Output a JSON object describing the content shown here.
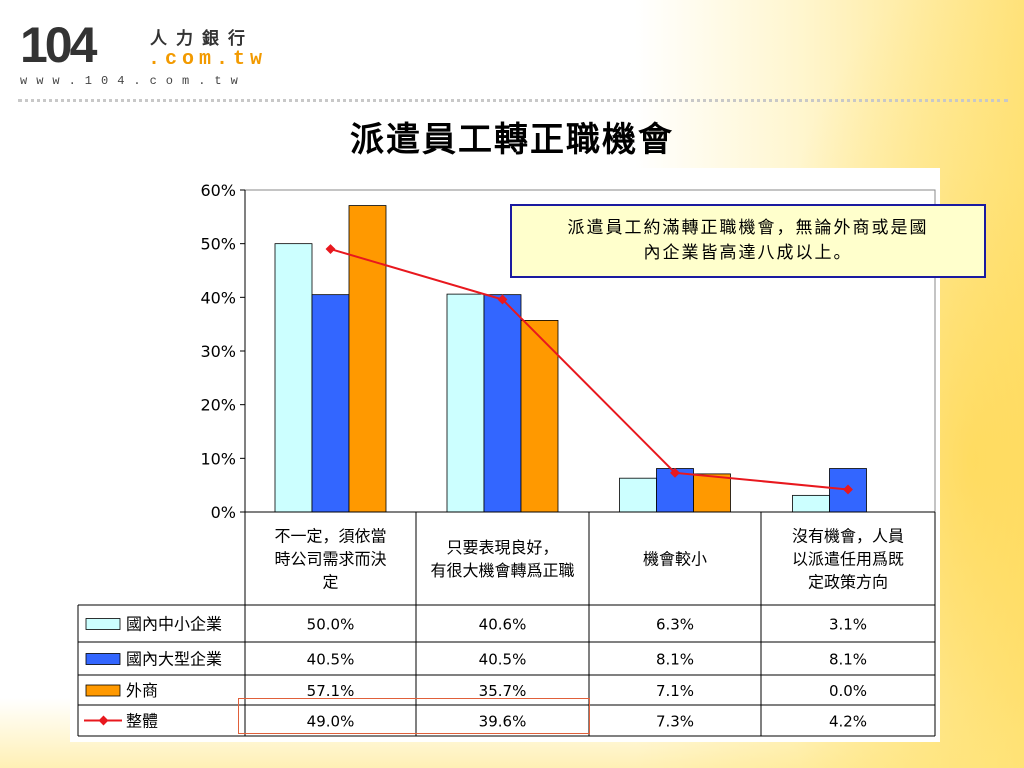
{
  "logo": {
    "number": "104",
    "chinese": "人力銀行",
    "domain": ".com.tw",
    "url": "www.104.com.tw"
  },
  "page_title": "派遣員工轉正職機會",
  "callout": {
    "text": "派遣員工約滿轉正職機會，無論外商或是國內企業皆高達八成以上。"
  },
  "colors": {
    "series_small_domestic": "#ccffff",
    "series_large_domestic": "#3366ff",
    "series_foreign": "#ff9900",
    "series_overall": "#e8181e",
    "highlight_box": "#e0603a",
    "callout_border": "#1a1aa0",
    "callout_fill": "#ffffcc"
  },
  "chart_data": {
    "type": "bar",
    "title": "",
    "xlabel": "",
    "ylabel": "",
    "ylim": [
      0,
      60
    ],
    "yticks": [
      "0%",
      "10%",
      "20%",
      "30%",
      "40%",
      "50%",
      "60%"
    ],
    "grid": false,
    "categories": [
      "不一定，須依當時公司需求而決定",
      "只要表現良好，有很大機會轉爲正職",
      "機會較小",
      "沒有機會，人員以派遣任用爲既定政策方向"
    ],
    "series": [
      {
        "name": "國內中小企業",
        "type": "bar",
        "values": [
          50.0,
          40.6,
          6.3,
          3.1
        ],
        "labels": [
          "50.0%",
          "40.6%",
          "6.3%",
          "3.1%"
        ]
      },
      {
        "name": "國內大型企業",
        "type": "bar",
        "values": [
          40.5,
          40.5,
          8.1,
          8.1
        ],
        "labels": [
          "40.5%",
          "40.5%",
          "8.1%",
          "8.1%"
        ]
      },
      {
        "name": "外商",
        "type": "bar",
        "values": [
          57.1,
          35.7,
          7.1,
          0.0
        ],
        "labels": [
          "57.1%",
          "35.7%",
          "7.1%",
          "0.0%"
        ]
      },
      {
        "name": "整體",
        "type": "line",
        "values": [
          49.0,
          39.6,
          7.3,
          4.2
        ],
        "labels": [
          "49.0%",
          "39.6%",
          "7.3%",
          "4.2%"
        ]
      }
    ],
    "legend": "table-left"
  }
}
